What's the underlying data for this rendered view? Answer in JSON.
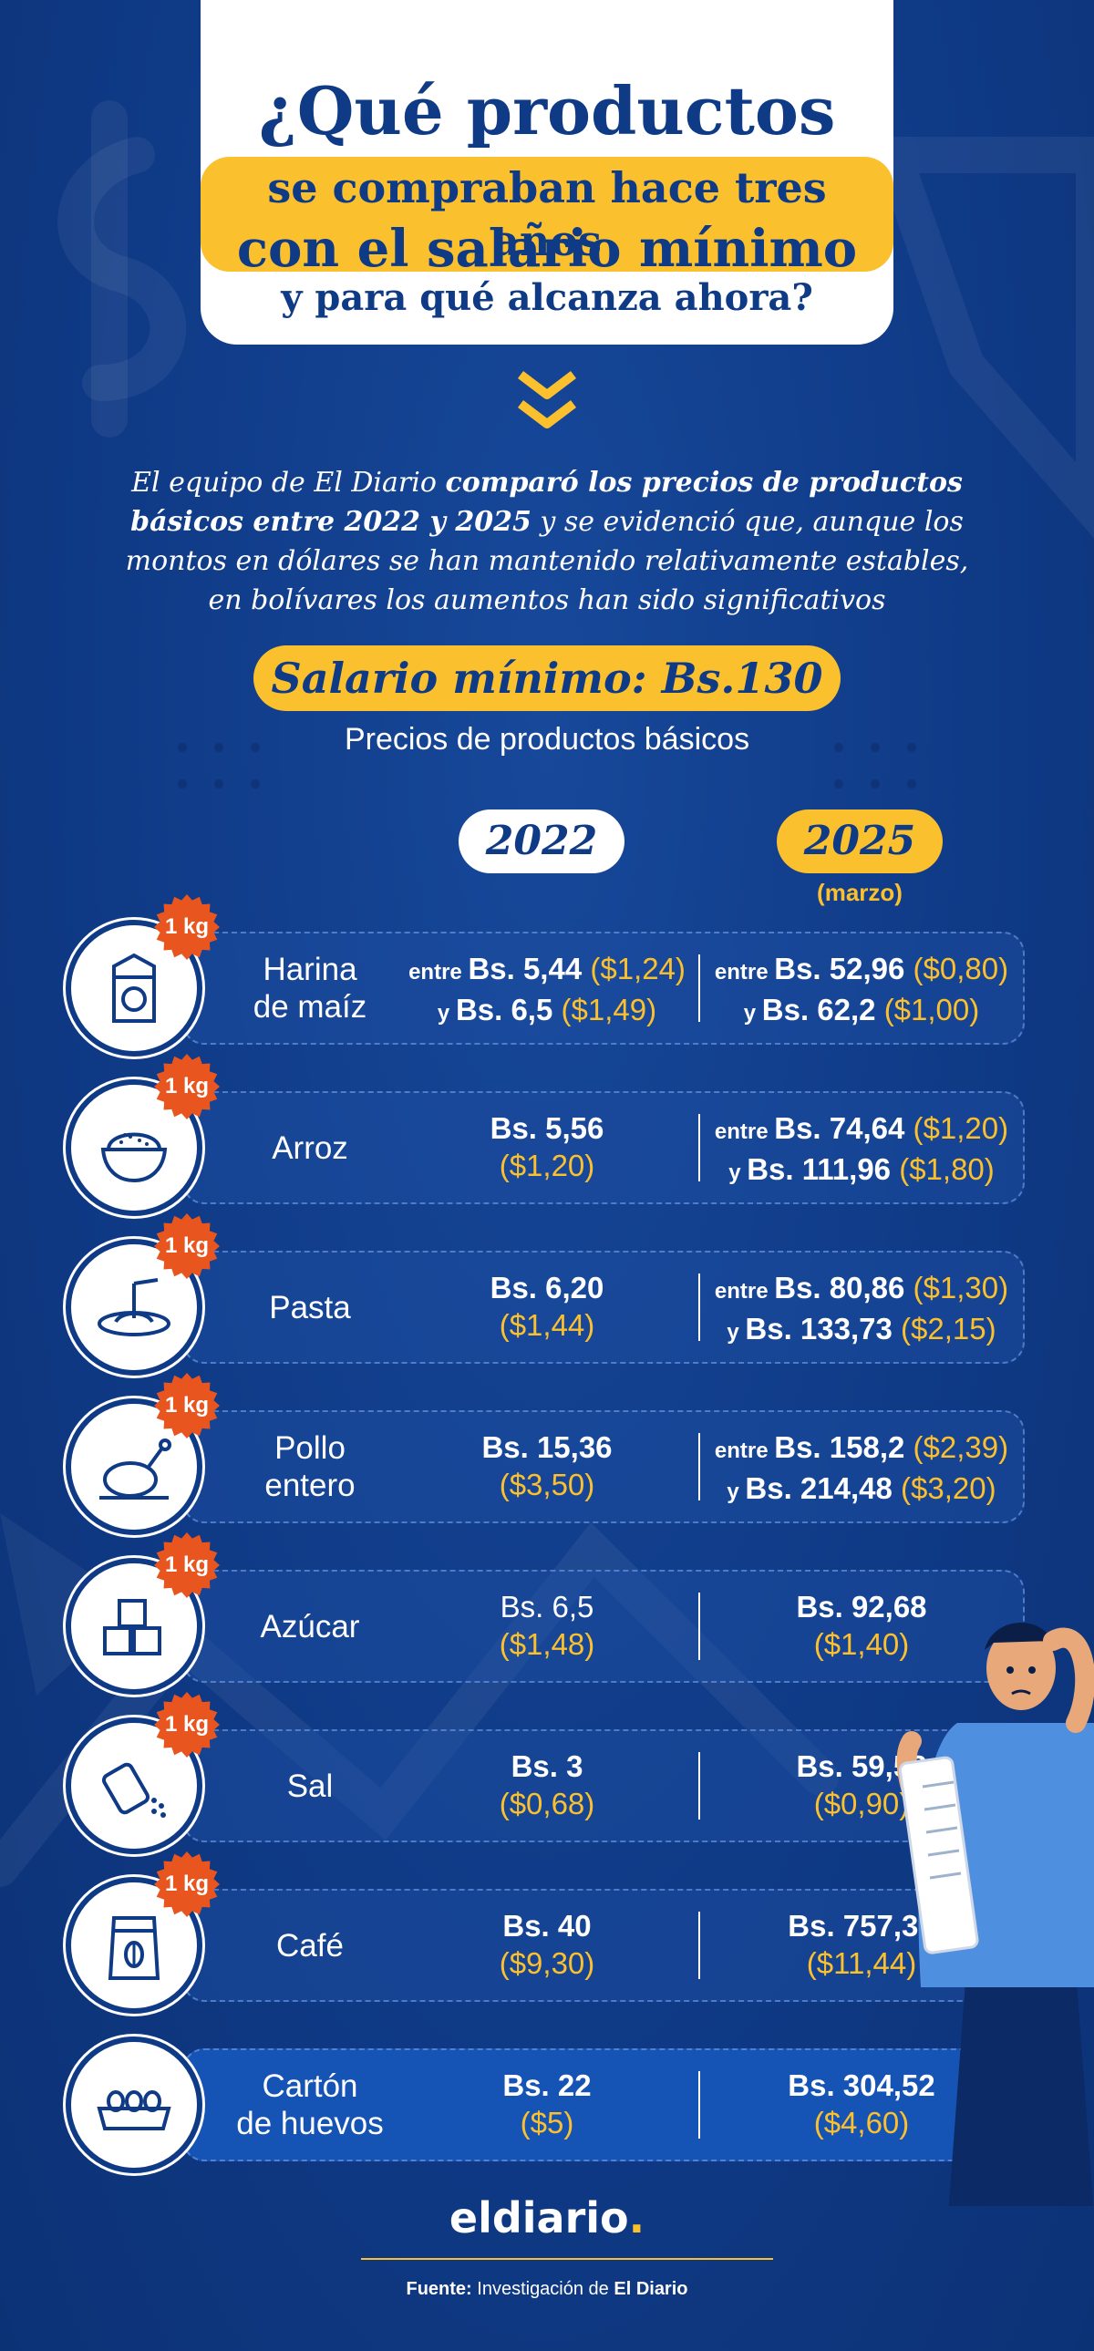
{
  "header": {
    "line1": "¿Qué productos",
    "line2": "se compraban hace tres años",
    "line3": "con el salario mínimo",
    "line4": "y para qué alcanza ahora?"
  },
  "intro": {
    "part1": "El equipo de El Diario ",
    "part2": "comparó los precios de productos básicos entre 2022 y 2025",
    "part3": " y se evidenció que, aunque los montos en dólares se han mantenido relativamente estables, en bolívares los aumentos han sido significativos"
  },
  "salario_label": "Salario mínimo: Bs.130",
  "subtitle": "Precios de productos básicos",
  "years": {
    "y2022": "2022",
    "y2025": "2025",
    "y2025_note": "(marzo)"
  },
  "badge_label": "1 kg",
  "products": [
    {
      "icon": "flour-bag-icon",
      "name": [
        "Harina",
        "de maíz"
      ],
      "badge": true,
      "p2022": [
        {
          "pre": "entre ",
          "bs": "Bs. 5,44",
          "usd": "($1,24)"
        },
        {
          "pre": "y ",
          "bs": "Bs. 6,5",
          "usd": "($1,49)"
        }
      ],
      "p2025": [
        {
          "pre": "entre ",
          "bs": "Bs. 52,96",
          "usd": "($0,80)"
        },
        {
          "pre": "y ",
          "bs": "Bs. 62,2",
          "usd": "($1,00)"
        }
      ]
    },
    {
      "icon": "rice-bowl-icon",
      "name": [
        "Arroz"
      ],
      "badge": true,
      "p2022": [
        {
          "pre": "",
          "bs": "Bs. 5,56",
          "usd": ""
        },
        {
          "pre": "",
          "bs": "",
          "usd": "($1,20)"
        }
      ],
      "p2025": [
        {
          "pre": "entre ",
          "bs": "Bs. 74,64",
          "usd": "($1,20)"
        },
        {
          "pre": "y ",
          "bs": "Bs. 111,96",
          "usd": "($1,80)"
        }
      ]
    },
    {
      "icon": "pasta-plate-icon",
      "name": [
        "Pasta"
      ],
      "badge": true,
      "p2022": [
        {
          "pre": "",
          "bs": "Bs. 6,20",
          "usd": ""
        },
        {
          "pre": "",
          "bs": "",
          "usd": "($1,44)"
        }
      ],
      "p2025": [
        {
          "pre": "entre ",
          "bs": "Bs. 80,86",
          "usd": "($1,30)"
        },
        {
          "pre": "y ",
          "bs": "Bs. 133,73",
          "usd": "($2,15)"
        }
      ]
    },
    {
      "icon": "whole-chicken-icon",
      "name": [
        "Pollo",
        "entero"
      ],
      "badge": true,
      "p2022": [
        {
          "pre": "",
          "bs": "Bs. 15,36",
          "usd": ""
        },
        {
          "pre": "",
          "bs": "",
          "usd": "($3,50)"
        }
      ],
      "p2025": [
        {
          "pre": "entre ",
          "bs": "Bs. 158,2",
          "usd": "($2,39)"
        },
        {
          "pre": "y ",
          "bs": "Bs. 214,48",
          "usd": "($3,20)"
        }
      ]
    },
    {
      "icon": "sugar-cubes-icon",
      "name": [
        "Azúcar"
      ],
      "badge": true,
      "p2022": [
        {
          "pre": "",
          "bs": "Bs. 6,5",
          "usd": "",
          "plain": true
        },
        {
          "pre": "",
          "bs": "",
          "usd": "($1,48)"
        }
      ],
      "p2025": [
        {
          "pre": "",
          "bs": "Bs. 92,68",
          "usd": ""
        },
        {
          "pre": "",
          "bs": "",
          "usd": "($1,40)"
        }
      ]
    },
    {
      "icon": "salt-shaker-icon",
      "name": [
        "Sal"
      ],
      "badge": true,
      "p2022": [
        {
          "pre": "",
          "bs": "Bs. 3",
          "usd": ""
        },
        {
          "pre": "",
          "bs": "",
          "usd": "($0,68)"
        }
      ],
      "p2025": [
        {
          "pre": "",
          "bs": "Bs. 59,58",
          "usd": ""
        },
        {
          "pre": "",
          "bs": "",
          "usd": "($0,90)"
        }
      ]
    },
    {
      "icon": "coffee-bag-icon",
      "name": [
        "Café"
      ],
      "badge": true,
      "p2022": [
        {
          "pre": "",
          "bs": "Bs. 40",
          "usd": ""
        },
        {
          "pre": "",
          "bs": "",
          "usd": "($9,30)"
        }
      ],
      "p2025": [
        {
          "pre": "",
          "bs": "Bs. 757,32",
          "usd": ""
        },
        {
          "pre": "",
          "bs": "",
          "usd": "($11,44)"
        }
      ]
    },
    {
      "icon": "egg-carton-icon",
      "name": [
        "Cartón",
        "de huevos"
      ],
      "badge": false,
      "p2022": [
        {
          "pre": "",
          "bs": "Bs. 22",
          "usd": ""
        },
        {
          "pre": "",
          "bs": "",
          "usd": "($5)"
        }
      ],
      "p2025": [
        {
          "pre": "",
          "bs": "Bs. 304,52",
          "usd": ""
        },
        {
          "pre": "",
          "bs": "",
          "usd": "($4,60)"
        }
      ]
    }
  ],
  "logo": {
    "text": "eldiario",
    "dot": "."
  },
  "source": {
    "label": "Fuente:",
    "text1": " Investigación de ",
    "text2": "El Diario"
  },
  "colors": {
    "background": "#0f3a86",
    "accent": "#fbc02d",
    "badge": "#e8551f",
    "white": "#ffffff"
  }
}
